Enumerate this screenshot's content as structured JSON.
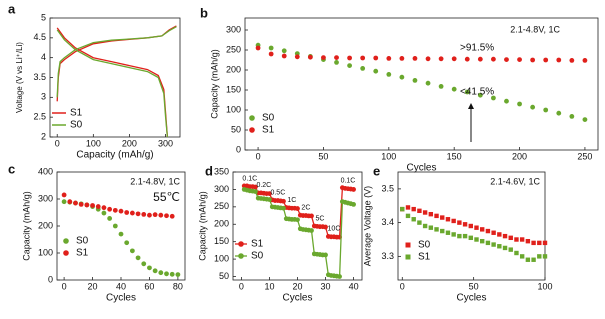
{
  "chart_data": [
    {
      "type": "line",
      "label": "a",
      "x_label": "Capacity (mAh/g)",
      "y_label": "Voltage (V vs Li⁺/Li)",
      "x": [
        0,
        3,
        8,
        20,
        50,
        100,
        150,
        200,
        250,
        290,
        310,
        330,
        null,
        0,
        20,
        50,
        100,
        150,
        200,
        250,
        280,
        295,
        300,
        305
      ],
      "series": [
        {
          "name": "S1",
          "color": "#e0201b",
          "values": [
            2.9,
            3.5,
            3.85,
            3.95,
            4.15,
            4.35,
            4.42,
            4.46,
            4.5,
            4.55,
            4.7,
            4.8,
            null,
            4.75,
            4.5,
            4.25,
            4.0,
            3.9,
            3.8,
            3.7,
            3.55,
            3.2,
            2.6,
            2.0
          ]
        },
        {
          "name": "S0",
          "color": "#6aa82e",
          "values": [
            3.0,
            3.6,
            3.9,
            4.0,
            4.2,
            4.38,
            4.44,
            4.47,
            4.5,
            4.55,
            4.68,
            4.78,
            null,
            4.7,
            4.45,
            4.2,
            3.95,
            3.85,
            3.75,
            3.65,
            3.5,
            3.1,
            2.5,
            2.0
          ]
        }
      ],
      "xlim": [
        -20,
        340
      ],
      "xticks": [
        0,
        100,
        200,
        300
      ],
      "ylim": [
        2,
        5
      ],
      "yticks": [
        2,
        2.5,
        3,
        3.5,
        4,
        4.5,
        5
      ],
      "legend": "lower left"
    },
    {
      "type": "scatter",
      "marker": "circle",
      "label": "b",
      "x_label": "Cycles",
      "y_label": "Capacity (mAh/g)",
      "annotations": [
        "2.1-4.8V, 1C",
        ">91.5%",
        "<41.5%"
      ],
      "x": [
        0,
        10,
        20,
        30,
        40,
        50,
        60,
        70,
        80,
        90,
        100,
        110,
        120,
        130,
        140,
        150,
        160,
        170,
        180,
        190,
        200,
        210,
        220,
        230,
        240,
        250
      ],
      "series": [
        {
          "name": "S0",
          "color": "#6aa82e",
          "values": [
            262,
            255,
            248,
            241,
            234,
            226,
            219,
            211,
            204,
            197,
            189,
            182,
            174,
            167,
            159,
            152,
            145,
            137,
            130,
            122,
            115,
            107,
            100,
            92,
            84,
            76
          ]
        },
        {
          "name": "S1",
          "color": "#e0201b",
          "values": [
            255,
            240,
            235,
            233,
            232,
            231,
            231,
            230,
            230,
            230,
            229,
            229,
            229,
            228,
            228,
            228,
            227,
            227,
            227,
            226,
            226,
            225,
            225,
            225,
            224,
            224
          ]
        }
      ],
      "xlim": [
        -10,
        260
      ],
      "xticks": [
        0,
        50,
        100,
        150,
        200,
        250
      ],
      "ylim": [
        0,
        330
      ],
      "yticks": [
        0,
        50,
        100,
        150,
        200,
        250,
        300
      ],
      "legend": "lower left"
    },
    {
      "type": "scatter",
      "marker": "circle",
      "label": "c",
      "x_label": "Cycles",
      "y_label": "Capacity (mAh/g)",
      "annotations": [
        "2.1-4.8V, 1C",
        "55℃"
      ],
      "x": [
        0,
        4,
        8,
        12,
        16,
        20,
        24,
        28,
        32,
        36,
        40,
        44,
        48,
        52,
        56,
        60,
        64,
        68,
        72,
        76,
        80
      ],
      "series": [
        {
          "name": "S0",
          "color": "#6aa82e",
          "values": [
            290,
            288,
            285,
            282,
            278,
            272,
            262,
            248,
            228,
            200,
            170,
            138,
            108,
            82,
            60,
            45,
            34,
            27,
            23,
            21,
            20
          ]
        },
        {
          "name": "S1",
          "color": "#e0201b",
          "values": [
            315,
            290,
            285,
            280,
            278,
            276,
            272,
            268,
            262,
            258,
            255,
            250,
            248,
            245,
            243,
            240,
            242,
            240,
            238,
            236,
            null
          ]
        }
      ],
      "xlim": [
        -5,
        85
      ],
      "xticks": [
        0,
        20,
        40,
        60,
        80
      ],
      "ylim": [
        0,
        400
      ],
      "yticks": [
        0,
        100,
        200,
        300,
        400
      ],
      "legend": "lower left"
    },
    {
      "type": "line",
      "marker": "circle",
      "label": "d",
      "x_label": "Cycles",
      "y_label": "Capacity (mAh/g)",
      "rate_labels": [
        "0.1C",
        "0.2C",
        "0.5C",
        "1C",
        "2C",
        "5C",
        "10C",
        "0.1C"
      ],
      "x": [
        1,
        2,
        3,
        4,
        5,
        6,
        7,
        8,
        9,
        10,
        11,
        12,
        13,
        14,
        15,
        16,
        17,
        18,
        19,
        20,
        21,
        22,
        23,
        24,
        25,
        26,
        27,
        28,
        29,
        30,
        31,
        32,
        33,
        34,
        35,
        36,
        37,
        38,
        39,
        40
      ],
      "series": [
        {
          "name": "S1",
          "color": "#e0201b",
          "values": [
            310,
            310,
            308,
            308,
            307,
            290,
            290,
            289,
            288,
            288,
            270,
            268,
            268,
            267,
            266,
            248,
            247,
            246,
            246,
            245,
            226,
            225,
            225,
            224,
            224,
            195,
            194,
            193,
            193,
            192,
            165,
            164,
            164,
            163,
            163,
            305,
            303,
            302,
            301,
            300
          ]
        },
        {
          "name": "S0",
          "color": "#6aa82e",
          "values": [
            300,
            298,
            296,
            295,
            294,
            275,
            274,
            273,
            272,
            271,
            250,
            249,
            248,
            247,
            246,
            216,
            215,
            214,
            214,
            213,
            187,
            185,
            184,
            183,
            182,
            115,
            114,
            113,
            112,
            112,
            55,
            53,
            52,
            51,
            50,
            265,
            263,
            261,
            259,
            257
          ]
        }
      ],
      "xlim": [
        -3,
        43
      ],
      "xticks": [
        0,
        10,
        20,
        30,
        40
      ],
      "ylim": [
        40,
        350
      ],
      "yticks": [
        50,
        100,
        150,
        200,
        250,
        300,
        350
      ],
      "legend": "lower left"
    },
    {
      "type": "scatter",
      "marker": "square",
      "label": "e",
      "x_label": "Cycles",
      "y_label": "Average Voltage (V)",
      "annotations": [
        "2.1-4.6V, 1C"
      ],
      "x": [
        0,
        4,
        8,
        12,
        16,
        20,
        24,
        28,
        32,
        36,
        40,
        44,
        48,
        52,
        56,
        60,
        64,
        68,
        72,
        76,
        80,
        84,
        88,
        92,
        96,
        100
      ],
      "series": [
        {
          "name": "S0",
          "color": "#e0201b",
          "values": [
            3.44,
            3.445,
            3.44,
            3.435,
            3.43,
            3.425,
            3.42,
            3.415,
            3.41,
            3.405,
            3.4,
            3.395,
            3.39,
            3.385,
            3.38,
            3.375,
            3.37,
            3.365,
            3.36,
            3.355,
            3.35,
            3.35,
            3.345,
            3.34,
            3.34,
            3.34
          ]
        },
        {
          "name": "S1",
          "color": "#6aa82e",
          "values": [
            3.44,
            3.42,
            3.41,
            3.4,
            3.39,
            3.385,
            3.38,
            3.375,
            3.37,
            3.365,
            3.36,
            3.36,
            3.355,
            3.35,
            3.345,
            3.34,
            3.335,
            3.33,
            3.325,
            3.32,
            3.31,
            3.3,
            3.29,
            3.29,
            3.3,
            3.3
          ]
        }
      ],
      "xlim": [
        -3,
        100
      ],
      "xticks": [
        0,
        50,
        100
      ],
      "ylim": [
        3.23,
        3.55
      ],
      "yticks": [
        3.3,
        3.4,
        3.5
      ],
      "legend": "lower left"
    }
  ]
}
